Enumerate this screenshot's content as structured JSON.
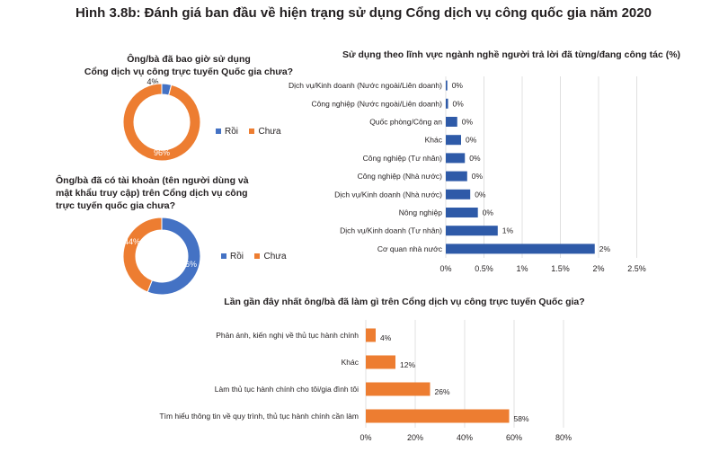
{
  "figure_title": "Hình 3.8b: Đánh giá ban đầu về hiện trạng sử dụng Cổng dịch vụ công quốc gia năm 2020",
  "colors": {
    "blue": "#4472c4",
    "orange": "#ed7d31",
    "bar_blue": "#2e5aa8",
    "bar_orange": "#ed7d31",
    "grid": "#d9d9d9"
  },
  "chart_data": [
    {
      "type": "pie",
      "title": "Ông/bà đã bao giờ sử dụng Cổng dịch vụ công trực tuyến Quốc gia chưa?",
      "title_lines": [
        "Ông/bà đã bao giờ sử dụng",
        "Cổng dịch vụ công trực tuyến Quốc gia chưa?"
      ],
      "labels": [
        "Rồi",
        "Chưa"
      ],
      "values": [
        4,
        96
      ],
      "data_labels": [
        "4%",
        "96%"
      ],
      "donut": true
    },
    {
      "type": "pie",
      "title": "Ông/bà đã có tài khoản (tên người dùng và mật khẩu truy cập) trên Cổng dịch vụ công trực tuyến quốc gia chưa?",
      "title_lines": [
        "Ông/bà đã có tài khoản (tên người dùng và",
        "mật khẩu truy cập) trên Cổng dịch vụ công",
        "trực tuyến quốc gia chưa?"
      ],
      "labels": [
        "Rồi",
        "Chưa"
      ],
      "values": [
        56,
        44
      ],
      "data_labels": [
        "56%",
        "44%"
      ],
      "donut": true
    },
    {
      "type": "bar",
      "orientation": "horizontal",
      "title": "Sử dụng theo lĩnh vực ngành nghề người trả lời đã từng/đang công tác (%)",
      "categories": [
        "Dịch vụ/Kinh doanh (Nước ngoài/Liên doanh)",
        "Công nghiệp (Nước ngoài/Liên doanh)",
        "Quốc phòng/Công an",
        "Khác",
        "Công nghiệp (Tư nhân)",
        "Công nghiệp (Nhà nước)",
        "Dịch vụ/Kinh doanh (Nhà nước)",
        "Nông nghiệp",
        "Dịch vụ/Kinh doanh (Tư nhân)",
        "Cơ quan nhà nước"
      ],
      "values": [
        0.02,
        0.03,
        0.15,
        0.2,
        0.25,
        0.28,
        0.32,
        0.42,
        0.68,
        1.95
      ],
      "data_labels": [
        "0%",
        "0%",
        "0%",
        "0%",
        "0%",
        "0%",
        "0%",
        "0%",
        "1%",
        "2%"
      ],
      "xticks": [
        "0%",
        "0.5%",
        "1%",
        "1.5%",
        "2%",
        "2.5%"
      ],
      "xlim": [
        0,
        2.5
      ],
      "grid": true
    },
    {
      "type": "bar",
      "orientation": "horizontal",
      "title": "Lần gần đây nhất ông/bà đã làm gì trên Cổng dịch vụ công trực tuyến Quốc gia?",
      "categories": [
        "Phản ánh, kiến nghị về thủ tục hành chính",
        "Khác",
        "Làm thủ tục hành chính cho tôi/gia đình tôi",
        "Tìm hiểu thông tin về quy trình, thủ tục hành chính cần làm"
      ],
      "values": [
        4,
        12,
        26,
        58
      ],
      "data_labels": [
        "4%",
        "12%",
        "26%",
        "58%"
      ],
      "xticks": [
        "0%",
        "20%",
        "40%",
        "60%",
        "80%"
      ],
      "xlim": [
        0,
        80
      ],
      "grid": true
    }
  ]
}
